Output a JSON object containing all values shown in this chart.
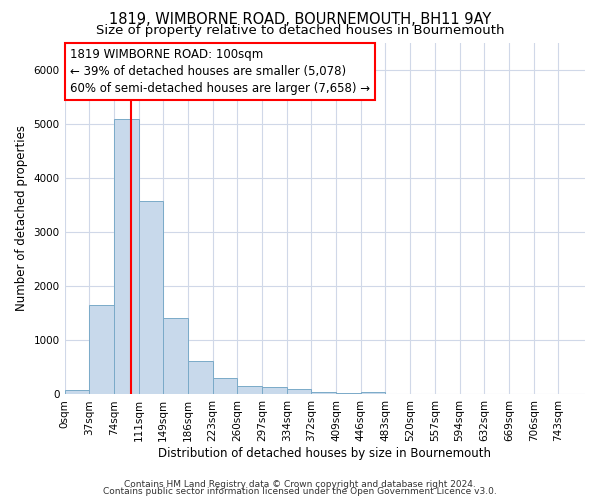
{
  "title": "1819, WIMBORNE ROAD, BOURNEMOUTH, BH11 9AY",
  "subtitle": "Size of property relative to detached houses in Bournemouth",
  "xlabel": "Distribution of detached houses by size in Bournemouth",
  "ylabel": "Number of detached properties",
  "bar_edges": [
    0,
    37,
    74,
    111,
    148,
    185,
    222,
    259,
    296,
    333,
    370,
    407,
    444,
    481,
    518,
    555,
    592,
    629,
    666,
    703,
    740
  ],
  "bar_heights": [
    80,
    1650,
    5080,
    3580,
    1420,
    610,
    300,
    160,
    130,
    100,
    50,
    30,
    50,
    5,
    3,
    2,
    1,
    1,
    0,
    0
  ],
  "bar_color": "#c8d9eb",
  "bar_edgecolor": "#7aaac8",
  "red_line_x": 100,
  "annotation_text": "1819 WIMBORNE ROAD: 100sqm\n← 39% of detached houses are smaller (5,078)\n60% of semi-detached houses are larger (7,658) →",
  "annotation_box_color": "white",
  "annotation_box_edgecolor": "red",
  "ylim": [
    0,
    6500
  ],
  "xlim": [
    0,
    780
  ],
  "tick_labels": [
    "0sqm",
    "37sqm",
    "74sqm",
    "111sqm",
    "149sqm",
    "186sqm",
    "223sqm",
    "260sqm",
    "297sqm",
    "334sqm",
    "372sqm",
    "409sqm",
    "446sqm",
    "483sqm",
    "520sqm",
    "557sqm",
    "594sqm",
    "632sqm",
    "669sqm",
    "706sqm",
    "743sqm"
  ],
  "footer1": "Contains HM Land Registry data © Crown copyright and database right 2024.",
  "footer2": "Contains public sector information licensed under the Open Government Licence v3.0.",
  "background_color": "#ffffff",
  "plot_background_color": "#ffffff",
  "grid_color": "#d0d8e8",
  "title_fontsize": 10.5,
  "subtitle_fontsize": 9.5,
  "tick_fontsize": 7.5,
  "ylabel_fontsize": 8.5,
  "xlabel_fontsize": 8.5,
  "footer_fontsize": 6.5,
  "annotation_fontsize": 8.5
}
